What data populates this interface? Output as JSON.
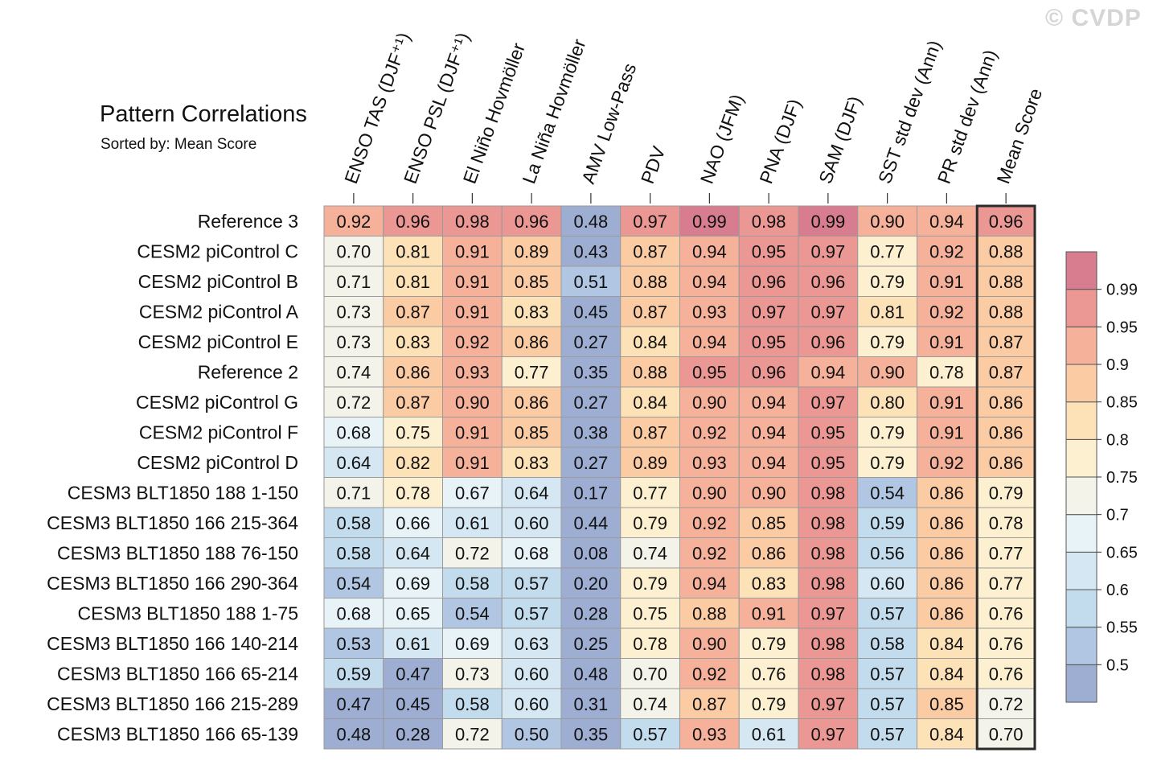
{
  "watermark": "© CVDP",
  "chart_data": {
    "type": "heatmap",
    "title": "Pattern Correlations",
    "subtitle": "Sorted by: Mean Score",
    "columns": [
      "ENSO TAS (DJF⁺¹)",
      "ENSO PSL (DJF⁺¹)",
      "El Niño Hovmöller",
      "La Niña Hovmöller",
      "AMV Low-Pass",
      "PDV",
      "NAO (JFM)",
      "PNA (DJF)",
      "SAM (DJF)",
      "SST std dev (Ann)",
      "PR std dev (Ann)",
      "Mean Score"
    ],
    "rows": [
      "Reference 3",
      "CESM2 piControl C",
      "CESM2 piControl B",
      "CESM2 piControl A",
      "CESM2 piControl E",
      "Reference 2",
      "CESM2 piControl G",
      "CESM2 piControl F",
      "CESM2 piControl D",
      "CESM3 BLT1850 188 1-150",
      "CESM3 BLT1850 166 215-364",
      "CESM3 BLT1850 188 76-150",
      "CESM3 BLT1850 166 290-364",
      "CESM3 BLT1850 188 1-75",
      "CESM3 BLT1850 166 140-214",
      "CESM3 BLT1850 166 65-214",
      "CESM3 BLT1850 166 215-289",
      "CESM3 BLT1850 166 65-139"
    ],
    "values": [
      [
        "0.92",
        "0.96",
        "0.98",
        "0.96",
        "0.48",
        "0.97",
        "0.99",
        "0.98",
        "0.99",
        "0.90",
        "0.94",
        "0.96"
      ],
      [
        "0.70",
        "0.81",
        "0.91",
        "0.89",
        "0.43",
        "0.87",
        "0.94",
        "0.95",
        "0.97",
        "0.77",
        "0.92",
        "0.88"
      ],
      [
        "0.71",
        "0.81",
        "0.91",
        "0.85",
        "0.51",
        "0.88",
        "0.94",
        "0.96",
        "0.96",
        "0.79",
        "0.91",
        "0.88"
      ],
      [
        "0.73",
        "0.87",
        "0.91",
        "0.83",
        "0.45",
        "0.87",
        "0.93",
        "0.97",
        "0.97",
        "0.81",
        "0.92",
        "0.88"
      ],
      [
        "0.73",
        "0.83",
        "0.92",
        "0.86",
        "0.27",
        "0.84",
        "0.94",
        "0.95",
        "0.96",
        "0.79",
        "0.91",
        "0.87"
      ],
      [
        "0.74",
        "0.86",
        "0.93",
        "0.77",
        "0.35",
        "0.88",
        "0.95",
        "0.96",
        "0.94",
        "0.90",
        "0.78",
        "0.87"
      ],
      [
        "0.72",
        "0.87",
        "0.90",
        "0.86",
        "0.27",
        "0.84",
        "0.90",
        "0.94",
        "0.97",
        "0.80",
        "0.91",
        "0.86"
      ],
      [
        "0.68",
        "0.75",
        "0.91",
        "0.85",
        "0.38",
        "0.87",
        "0.92",
        "0.94",
        "0.95",
        "0.79",
        "0.91",
        "0.86"
      ],
      [
        "0.64",
        "0.82",
        "0.91",
        "0.83",
        "0.27",
        "0.89",
        "0.93",
        "0.94",
        "0.95",
        "0.79",
        "0.92",
        "0.86"
      ],
      [
        "0.71",
        "0.78",
        "0.67",
        "0.64",
        "0.17",
        "0.77",
        "0.90",
        "0.90",
        "0.98",
        "0.54",
        "0.86",
        "0.79"
      ],
      [
        "0.58",
        "0.66",
        "0.61",
        "0.60",
        "0.44",
        "0.79",
        "0.92",
        "0.85",
        "0.98",
        "0.59",
        "0.86",
        "0.78"
      ],
      [
        "0.58",
        "0.64",
        "0.72",
        "0.68",
        "0.08",
        "0.74",
        "0.92",
        "0.86",
        "0.98",
        "0.56",
        "0.86",
        "0.77"
      ],
      [
        "0.54",
        "0.69",
        "0.58",
        "0.57",
        "0.20",
        "0.79",
        "0.94",
        "0.83",
        "0.98",
        "0.60",
        "0.86",
        "0.77"
      ],
      [
        "0.68",
        "0.65",
        "0.54",
        "0.57",
        "0.28",
        "0.75",
        "0.88",
        "0.91",
        "0.97",
        "0.57",
        "0.86",
        "0.76"
      ],
      [
        "0.53",
        "0.61",
        "0.69",
        "0.63",
        "0.25",
        "0.78",
        "0.90",
        "0.79",
        "0.98",
        "0.58",
        "0.84",
        "0.76"
      ],
      [
        "0.59",
        "0.47",
        "0.73",
        "0.60",
        "0.48",
        "0.70",
        "0.92",
        "0.76",
        "0.98",
        "0.57",
        "0.84",
        "0.76"
      ],
      [
        "0.47",
        "0.45",
        "0.58",
        "0.60",
        "0.31",
        "0.74",
        "0.87",
        "0.79",
        "0.97",
        "0.57",
        "0.85",
        "0.72"
      ],
      [
        "0.48",
        "0.28",
        "0.72",
        "0.50",
        "0.35",
        "0.57",
        "0.93",
        "0.61",
        "0.97",
        "0.57",
        "0.84",
        "0.70"
      ]
    ],
    "colorbar": {
      "levels": [
        "0.5",
        "0.55",
        "0.6",
        "0.65",
        "0.7",
        "0.75",
        "0.8",
        "0.85",
        "0.9",
        "0.95",
        "0.99"
      ],
      "colors": [
        "#9eaed3",
        "#b1c6e3",
        "#c2dbed",
        "#d4e7f3",
        "#e8f3f8",
        "#f4f3e9",
        "#fdf0d0",
        "#fde2b8",
        "#fbcca4",
        "#f5b19a",
        "#eb9794",
        "#d87d90"
      ]
    },
    "highlighted_column": "Mean Score"
  }
}
